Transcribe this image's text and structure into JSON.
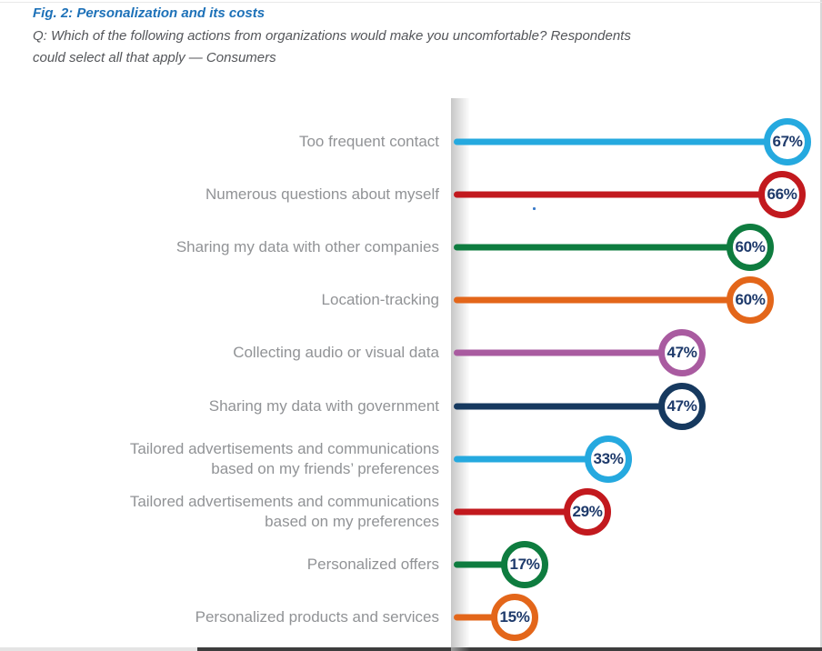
{
  "header": {
    "title": "Fig. 2: Personalization and its costs",
    "question_lines": [
      "Q: Which of the following actions from organizations would make you uncomfortable? Respondents",
      "could select all that apply — Consumers"
    ]
  },
  "chart_data": {
    "type": "bar",
    "variant": "horizontal-lollipop",
    "title": "Fig. 2: Personalization and its costs",
    "subtitle": "Q: Which of the following actions from organizations would make you uncomfortable? Respondents could select all that apply — Consumers",
    "unit": "%",
    "xlim": [
      0,
      70
    ],
    "grid": false,
    "legend": null,
    "value_label_position": "inside-circle-at-bar-end",
    "categories": [
      "Too frequent contact",
      "Numerous questions about myself",
      "Sharing my data with other companies",
      "Location-tracking",
      "Collecting audio or visual data",
      "Sharing my data with government",
      "Tailored advertisements and communications based on my friends’ preferences",
      "Tailored advertisements and communications based on my preferences",
      "Personalized offers",
      "Personalized products and services"
    ],
    "values": [
      67,
      66,
      60,
      60,
      47,
      47,
      33,
      29,
      17,
      15
    ],
    "rows": [
      {
        "label_lines": [
          "Too frequent contact"
        ],
        "value": 67,
        "value_label": "67%",
        "color": "#25a9df"
      },
      {
        "label_lines": [
          "Numerous questions about myself"
        ],
        "value": 66,
        "value_label": "66%",
        "color": "#c2191e"
      },
      {
        "label_lines": [
          "Sharing my data with other companies"
        ],
        "value": 60,
        "value_label": "60%",
        "color": "#0e7c3f"
      },
      {
        "label_lines": [
          "Location-tracking"
        ],
        "value": 60,
        "value_label": "60%",
        "color": "#e3661a"
      },
      {
        "label_lines": [
          "Collecting audio or visual data"
        ],
        "value": 47,
        "value_label": "47%",
        "color": "#a95ba0"
      },
      {
        "label_lines": [
          "Sharing my data with government"
        ],
        "value": 47,
        "value_label": "47%",
        "color": "#16395f"
      },
      {
        "label_lines": [
          "Tailored advertisements and communications",
          "based on my friends’ preferences"
        ],
        "value": 33,
        "value_label": "33%",
        "color": "#25a9df"
      },
      {
        "label_lines": [
          "Tailored advertisements and communications",
          "based on my preferences"
        ],
        "value": 29,
        "value_label": "29%",
        "color": "#c2191e"
      },
      {
        "label_lines": [
          "Personalized offers"
        ],
        "value": 17,
        "value_label": "17%",
        "color": "#0e7c3f"
      },
      {
        "label_lines": [
          "Personalized products and services"
        ],
        "value": 15,
        "value_label": "15%",
        "color": "#e3661a"
      }
    ]
  },
  "colors": {
    "title_blue": "#1d71b8",
    "subtitle_gray": "#54565a",
    "category_label_gray": "#919396",
    "value_text_navy": "#1e3a6b",
    "axis_band_gray": "#d7d7d7",
    "page_background": "#ffffff",
    "bottom_bar_light": "#e4e4e4",
    "bottom_bar_dark": "#3d3d3d"
  }
}
